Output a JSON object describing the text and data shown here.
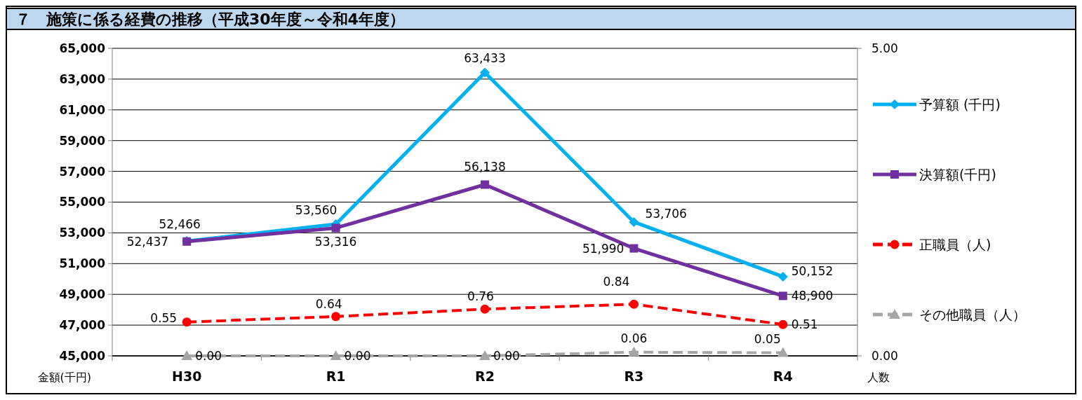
{
  "chart_data": {
    "type": "line",
    "title": "７　施策に係る経費の推移（平成30年度～令和4年度）",
    "categories": [
      "H30",
      "R1",
      "R2",
      "R3",
      "R4"
    ],
    "series": [
      {
        "name": "予算額 (千円)",
        "color": "#00b0f0",
        "marker": "diamond",
        "line_style": "solid",
        "values": [
          52466,
          53560,
          63433,
          53706,
          50152
        ],
        "value_labels": [
          "52,466",
          "53,560",
          "63,433",
          "53,706",
          "50,152"
        ]
      },
      {
        "name": "決算額(千円)",
        "color": "#7030a0",
        "marker": "square",
        "line_style": "solid",
        "values": [
          52437,
          53316,
          56138,
          51990,
          48900
        ],
        "value_labels": [
          "52,437",
          "53,316",
          "56,138",
          "51,990",
          "48,900"
        ]
      },
      {
        "name": "正職員（人)",
        "color": "#ff0000",
        "marker": "circle",
        "line_style": "dashed",
        "axis": "y2",
        "values": [
          0.55,
          0.64,
          0.76,
          0.84,
          0.51
        ],
        "value_labels": [
          "0.55",
          "0.64",
          "0.76",
          "0.84",
          "0.51"
        ]
      },
      {
        "name": "その他職員（人）",
        "color": "#a6a6a6",
        "marker": "triangle",
        "line_style": "dashed",
        "axis": "y2",
        "values": [
          0,
          0,
          0,
          0.06,
          0.05
        ],
        "value_labels": [
          "0.00",
          "0.00",
          "0.00",
          "0.06",
          "0.05"
        ]
      }
    ],
    "ylim": [
      45000,
      65000
    ],
    "yticks": [
      {
        "value": 45000,
        "label": "45,000"
      },
      {
        "value": 47000,
        "label": "47,000"
      },
      {
        "value": 49000,
        "label": "49,000"
      },
      {
        "value": 51000,
        "label": "51,000"
      },
      {
        "value": 53000,
        "label": "53,000"
      },
      {
        "value": 55000,
        "label": "55,000"
      },
      {
        "value": 57000,
        "label": "57,000"
      },
      {
        "value": 59000,
        "label": "59,000"
      },
      {
        "value": 61000,
        "label": "61,000"
      },
      {
        "value": 63000,
        "label": "63,000"
      },
      {
        "value": 65000,
        "label": "65,000"
      }
    ],
    "y2lim": [
      0,
      5
    ],
    "y2ticks": [
      {
        "value": 0,
        "label": "0.00"
      },
      {
        "value": 5,
        "label": "5.00"
      }
    ],
    "ylabel": "金額(千円)",
    "y2label": "人数",
    "grid": "y",
    "legend": "right"
  }
}
